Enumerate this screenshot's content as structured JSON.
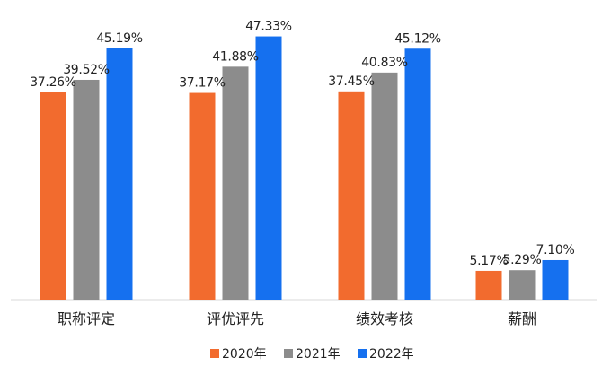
{
  "chart_data": {
    "type": "bar",
    "title": "",
    "xlabel": "",
    "ylabel": "",
    "ylim": [
      0,
      50
    ],
    "grid": false,
    "legend_position": "bottom-center",
    "categories": [
      "职称评定",
      "评优评先",
      "绩效考核",
      "薪酬"
    ],
    "series": [
      {
        "name": "2020年",
        "color": "#f26b2e",
        "values": [
          37.26,
          37.17,
          37.45,
          5.17
        ],
        "labels": [
          "37.26%",
          "37.17%",
          "37.45%",
          "5.17%"
        ]
      },
      {
        "name": "2021年",
        "color": "#8c8c8c",
        "values": [
          39.52,
          41.88,
          40.83,
          5.29
        ],
        "labels": [
          "39.52%",
          "41.88%",
          "40.83%",
          "5.29%"
        ]
      },
      {
        "name": "2022年",
        "color": "#1570ef",
        "values": [
          45.19,
          47.33,
          45.12,
          7.1
        ],
        "labels": [
          "45.19%",
          "47.33%",
          "45.12%",
          "7.10%"
        ]
      }
    ]
  }
}
